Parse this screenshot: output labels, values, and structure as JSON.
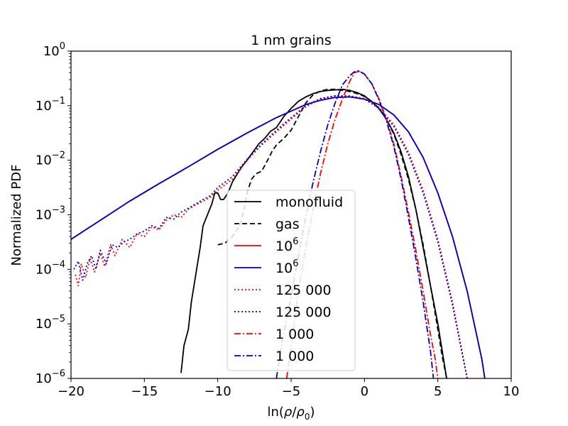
{
  "chart_data": {
    "type": "line",
    "title": "1 nm grains",
    "xlabel": "ln(ρ/ρ₀)",
    "xlabel_parts": {
      "prefix": "ln(",
      "rho": "ρ",
      "slash": "/",
      "rho0": "ρ",
      "sub0": "0",
      "suffix": ")"
    },
    "ylabel": "Normalized PDF",
    "xlim": [
      -20,
      10
    ],
    "ylim_log10": [
      -6,
      0
    ],
    "yscale": "log",
    "x_ticks": [
      {
        "value": -20,
        "label": "−20"
      },
      {
        "value": -15,
        "label": "−15"
      },
      {
        "value": -10,
        "label": "−10"
      },
      {
        "value": -5,
        "label": "−5"
      },
      {
        "value": 0,
        "label": "0"
      },
      {
        "value": 5,
        "label": "5"
      },
      {
        "value": 10,
        "label": "10"
      }
    ],
    "y_ticks": [
      {
        "exp": 0,
        "base": "10",
        "sup": "0"
      },
      {
        "exp": -1,
        "base": "10",
        "sup": "−1"
      },
      {
        "exp": -2,
        "base": "10",
        "sup": "−2"
      },
      {
        "exp": -3,
        "base": "10",
        "sup": "−3"
      },
      {
        "exp": -4,
        "base": "10",
        "sup": "−4"
      },
      {
        "exp": -5,
        "base": "10",
        "sup": "−5"
      },
      {
        "exp": -6,
        "base": "10",
        "sup": "−6"
      }
    ],
    "legend_position": "center",
    "legend": [
      {
        "label": "monofluid",
        "color": "#000000",
        "style": "solid"
      },
      {
        "label": "gas",
        "color": "#000000",
        "style": "dashed"
      },
      {
        "label_base": "10",
        "label_sup": "6",
        "color": "#ff0000",
        "style": "solid"
      },
      {
        "label_base": "10",
        "label_sup": "6",
        "color": "#0000cc",
        "style": "solid"
      },
      {
        "label": "125 000",
        "color": "#ff0000",
        "style": "dotted"
      },
      {
        "label": "125 000",
        "color": "#0000cc",
        "style": "dotted"
      },
      {
        "label": "1 000",
        "color": "#ff0000",
        "style": "dashdot"
      },
      {
        "label": "1 000",
        "color": "#0000cc",
        "style": "dashdot"
      }
    ],
    "series": [
      {
        "name": "monofluid",
        "color": "#000000",
        "style": "solid",
        "x": [
          -12.5,
          -12.3,
          -12.0,
          -11.8,
          -11.5,
          -11.2,
          -11.0,
          -10.7,
          -10.4,
          -10.2,
          -10.0,
          -9.8,
          -9.6,
          -9.3,
          -9.0,
          -8.6,
          -8.3,
          -8.0,
          -7.6,
          -7.2,
          -6.8,
          -6.4,
          -6.0,
          -5.5,
          -5.0,
          -4.5,
          -4.0,
          -3.5,
          -3.0,
          -2.5,
          -2.0,
          -1.5,
          -1.0,
          -0.5,
          0.0,
          0.5,
          1.0,
          1.5,
          2.0,
          2.5,
          3.0,
          3.5,
          4.0,
          4.5,
          5.0,
          5.3,
          5.6
        ],
        "log10y": [
          -5.9,
          -5.4,
          -5.1,
          -4.6,
          -4.1,
          -3.6,
          -3.2,
          -3.0,
          -2.8,
          -2.6,
          -2.6,
          -2.72,
          -2.72,
          -2.6,
          -2.4,
          -2.22,
          -2.1,
          -2.0,
          -1.85,
          -1.7,
          -1.6,
          -1.47,
          -1.4,
          -1.2,
          -1.05,
          -0.92,
          -0.84,
          -0.78,
          -0.74,
          -0.72,
          -0.71,
          -0.7,
          -0.72,
          -0.76,
          -0.82,
          -0.93,
          -1.06,
          -1.25,
          -1.5,
          -1.85,
          -2.3,
          -2.9,
          -3.6,
          -4.3,
          -5.0,
          -5.5,
          -6.0
        ]
      },
      {
        "name": "gas",
        "color": "#000000",
        "style": "dashed",
        "x": [
          -10.0,
          -9.5,
          -9.0,
          -8.5,
          -8.2,
          -8.0,
          -7.7,
          -7.4,
          -7.0,
          -6.6,
          -6.3,
          -6.0,
          -5.5,
          -5.0,
          -4.5,
          -4.0,
          -3.5,
          -3.0,
          -2.5,
          -2.0,
          -1.5,
          -1.0,
          -0.5,
          0.0,
          0.5,
          1.0,
          1.5,
          2.0,
          2.5,
          3.0,
          3.5,
          4.0,
          4.5,
          5.0,
          5.3,
          5.6
        ],
        "log10y": [
          -3.55,
          -3.52,
          -3.4,
          -3.2,
          -2.9,
          -2.6,
          -2.35,
          -2.25,
          -2.2,
          -2.0,
          -1.84,
          -1.72,
          -1.6,
          -1.45,
          -1.2,
          -0.95,
          -0.8,
          -0.73,
          -0.7,
          -0.7,
          -0.72,
          -0.74,
          -0.78,
          -0.83,
          -0.92,
          -1.05,
          -1.25,
          -1.52,
          -1.9,
          -2.35,
          -2.9,
          -3.55,
          -4.3,
          -5.1,
          -5.6,
          -6.0
        ]
      },
      {
        "name": "10^6 (red)",
        "color": "#ff0000",
        "style": "solid",
        "x": [
          -20,
          -18,
          -16,
          -14,
          -12,
          -10,
          -8,
          -6,
          -4,
          -3,
          -2,
          -1,
          0,
          1,
          2,
          3,
          4,
          5,
          6,
          7,
          8,
          8.2
        ],
        "log10y": [
          -3.45,
          -3.1,
          -2.75,
          -2.43,
          -2.12,
          -1.8,
          -1.5,
          -1.22,
          -0.98,
          -0.9,
          -0.85,
          -0.84,
          -0.88,
          -0.98,
          -1.17,
          -1.48,
          -1.95,
          -2.6,
          -3.4,
          -4.4,
          -5.65,
          -6.0
        ]
      },
      {
        "name": "10^6 (blue)",
        "color": "#0000cc",
        "style": "solid",
        "x": [
          -20,
          -18,
          -16,
          -14,
          -12,
          -10,
          -8,
          -6,
          -4,
          -3,
          -2,
          -1,
          0,
          1,
          2,
          3,
          4,
          5,
          6,
          7,
          8,
          8.2
        ],
        "log10y": [
          -3.45,
          -3.1,
          -2.75,
          -2.43,
          -2.12,
          -1.8,
          -1.5,
          -1.22,
          -0.98,
          -0.9,
          -0.85,
          -0.84,
          -0.88,
          -0.98,
          -1.17,
          -1.48,
          -1.95,
          -2.6,
          -3.4,
          -4.4,
          -5.65,
          -6.0
        ]
      },
      {
        "name": "125 000 (red)",
        "color": "#ff0000",
        "style": "dotted",
        "x": [
          -19.7,
          -19.5,
          -19.3,
          -19.0,
          -18.7,
          -18.4,
          -18.0,
          -17.7,
          -17.3,
          -17.0,
          -16.5,
          -16.0,
          -15.5,
          -15.0,
          -14.5,
          -14.0,
          -13.5,
          -13.0,
          -12.5,
          -12.0,
          -11.5,
          -11.0,
          -10.5,
          -10.0,
          -9.0,
          -8.0,
          -7.0,
          -6.0,
          -5.0,
          -4.0,
          -3.0,
          -2.0,
          -1.0,
          0.0,
          1.0,
          2.0,
          3.0,
          4.0,
          5.0,
          6.0,
          7.0
        ],
        "log10y": [
          -4.1,
          -4.3,
          -3.9,
          -4.15,
          -3.8,
          -4.05,
          -3.7,
          -3.95,
          -3.55,
          -3.75,
          -3.45,
          -3.6,
          -3.35,
          -3.4,
          -3.22,
          -3.28,
          -3.1,
          -3.0,
          -3.05,
          -2.9,
          -2.82,
          -2.75,
          -2.68,
          -2.55,
          -2.35,
          -2.0,
          -1.72,
          -1.48,
          -1.25,
          -1.02,
          -0.88,
          -0.82,
          -0.82,
          -0.87,
          -1.03,
          -1.35,
          -1.85,
          -2.55,
          -3.45,
          -4.6,
          -6.0
        ]
      },
      {
        "name": "125 000 (blue)",
        "color": "#0000cc",
        "style": "dotted",
        "x": [
          -19.8,
          -19.5,
          -19.2,
          -18.9,
          -18.6,
          -18.3,
          -18.0,
          -17.6,
          -17.2,
          -16.8,
          -16.4,
          -16.0,
          -15.5,
          -15.0,
          -14.5,
          -14.0,
          -13.5,
          -13.0,
          -12.5,
          -12.0,
          -11.5,
          -11.0,
          -10.5,
          -10.0,
          -9.0,
          -8.0,
          -7.0,
          -6.0,
          -5.0,
          -4.0,
          -3.0,
          -2.0,
          -1.0,
          0.0,
          1.0,
          2.0,
          3.0,
          4.0,
          5.0,
          6.0,
          7.0
        ],
        "log10y": [
          -4.0,
          -3.85,
          -4.2,
          -3.9,
          -3.75,
          -4.0,
          -3.65,
          -3.9,
          -3.55,
          -3.6,
          -3.5,
          -3.45,
          -3.35,
          -3.3,
          -3.2,
          -3.25,
          -3.05,
          -3.08,
          -2.95,
          -2.88,
          -2.8,
          -2.72,
          -2.65,
          -2.5,
          -2.3,
          -1.98,
          -1.7,
          -1.45,
          -1.22,
          -1.0,
          -0.87,
          -0.82,
          -0.83,
          -0.88,
          -1.05,
          -1.38,
          -1.9,
          -2.6,
          -3.5,
          -4.65,
          -6.0
        ]
      },
      {
        "name": "1 000 (red)",
        "color": "#ff0000",
        "style": "dashdot",
        "x": [
          -5.3,
          -5.0,
          -4.5,
          -4.0,
          -3.5,
          -3.0,
          -2.5,
          -2.0,
          -1.5,
          -1.0,
          -0.7,
          -0.4,
          0.0,
          0.5,
          1.0,
          1.5,
          2.0,
          2.5,
          3.0,
          3.5,
          4.0,
          4.5,
          4.8,
          5.0
        ],
        "log10y": [
          -6.0,
          -5.4,
          -4.4,
          -3.6,
          -2.9,
          -2.25,
          -1.7,
          -1.25,
          -0.88,
          -0.55,
          -0.4,
          -0.37,
          -0.42,
          -0.6,
          -0.88,
          -1.25,
          -1.7,
          -2.3,
          -2.95,
          -3.65,
          -4.4,
          -5.2,
          -5.6,
          -6.0
        ]
      },
      {
        "name": "1 000 (blue)",
        "color": "#0000cc",
        "style": "dashdot",
        "x": [
          -6.0,
          -5.6,
          -5.0,
          -4.5,
          -4.0,
          -3.5,
          -3.0,
          -2.5,
          -2.0,
          -1.5,
          -1.0,
          -0.7,
          -0.4,
          0.0,
          0.5,
          1.0,
          1.5,
          2.0,
          2.5,
          3.0,
          3.5,
          4.0,
          4.5,
          4.7
        ],
        "log10y": [
          -6.0,
          -5.3,
          -4.5,
          -3.75,
          -3.05,
          -2.4,
          -1.85,
          -1.35,
          -0.95,
          -0.62,
          -0.45,
          -0.38,
          -0.36,
          -0.42,
          -0.6,
          -0.9,
          -1.28,
          -1.75,
          -2.35,
          -3.05,
          -3.8,
          -4.6,
          -5.5,
          -6.0
        ]
      }
    ]
  }
}
